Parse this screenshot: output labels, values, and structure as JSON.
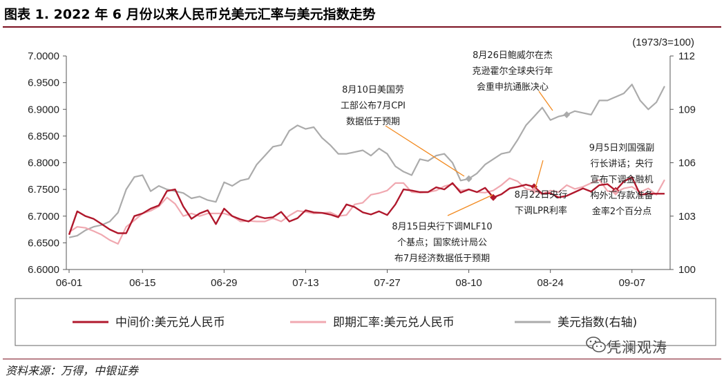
{
  "title": "图表 1. 2022 年 6 月份以来人民币兑美元汇率与美元指数走势",
  "source": "资料来源：万得，中银证券",
  "watermark": "凭澜观涛",
  "colors": {
    "central": "#b0182c",
    "spot": "#f0a8b0",
    "dxy": "#ababab",
    "rule": "#7a1020"
  },
  "chart_data": {
    "type": "line",
    "title": "",
    "right_axis_unit": "(1973/3=100)",
    "x": [
      "06-01",
      "06-02",
      "06-06",
      "06-07",
      "06-08",
      "06-09",
      "06-10",
      "06-13",
      "06-14",
      "06-15",
      "06-16",
      "06-17",
      "06-20",
      "06-21",
      "06-22",
      "06-23",
      "06-24",
      "06-27",
      "06-28",
      "06-29",
      "06-30",
      "07-01",
      "07-04",
      "07-05",
      "07-06",
      "07-07",
      "07-08",
      "07-11",
      "07-12",
      "07-13",
      "07-14",
      "07-15",
      "07-18",
      "07-19",
      "07-20",
      "07-21",
      "07-22",
      "07-25",
      "07-26",
      "07-27",
      "07-28",
      "07-29",
      "08-01",
      "08-02",
      "08-03",
      "08-04",
      "08-05",
      "08-08",
      "08-09",
      "08-10",
      "08-11",
      "08-12",
      "08-15",
      "08-16",
      "08-17",
      "08-18",
      "08-19",
      "08-22",
      "08-23",
      "08-24",
      "08-25",
      "08-26",
      "08-29",
      "08-30",
      "08-31",
      "09-01",
      "09-02",
      "09-05",
      "09-06",
      "09-07",
      "09-08",
      "09-09",
      "09-13",
      "09-14"
    ],
    "x_ticks": [
      "06-01",
      "06-15",
      "06-29",
      "07-13",
      "07-27",
      "08-10",
      "08-24",
      "09-07"
    ],
    "y_left": {
      "min": 6.6,
      "max": 7.0,
      "ticks": [
        "6.6000",
        "6.6500",
        "6.7000",
        "6.7500",
        "6.8000",
        "6.8500",
        "6.9000",
        "6.9500",
        "7.0000"
      ]
    },
    "y_right": {
      "min": 100,
      "max": 112,
      "ticks": [
        "100",
        "103",
        "106",
        "109",
        "112"
      ]
    },
    "series": [
      {
        "name": "中间价:美元兑人民币",
        "axis": "left",
        "values": [
          6.6651,
          6.709,
          6.7,
          6.695,
          6.685,
          6.675,
          6.668,
          6.668,
          6.7,
          6.705,
          6.714,
          6.72,
          6.747,
          6.75,
          6.718,
          6.695,
          6.705,
          6.711,
          6.685,
          6.714,
          6.7,
          6.694,
          6.69,
          6.7,
          6.696,
          6.698,
          6.708,
          6.69,
          6.696,
          6.711,
          6.707,
          6.706,
          6.703,
          6.698,
          6.722,
          6.717,
          6.707,
          6.703,
          6.709,
          6.702,
          6.722,
          6.75,
          6.748,
          6.745,
          6.745,
          6.754,
          6.75,
          6.762,
          6.744,
          6.75,
          6.745,
          6.753,
          6.735,
          6.741,
          6.752,
          6.755,
          6.759,
          6.755,
          6.742,
          6.743,
          6.735,
          6.738,
          6.745,
          6.752,
          6.746,
          6.758,
          6.76,
          6.748,
          6.765,
          6.773,
          6.74,
          6.742,
          6.742,
          6.742
        ]
      },
      {
        "name": "即期汇率:美元兑人民币",
        "axis": "left",
        "values": [
          6.67,
          6.68,
          6.678,
          6.672,
          6.665,
          6.655,
          6.648,
          6.68,
          6.692,
          6.705,
          6.71,
          6.718,
          6.735,
          6.723,
          6.7,
          6.705,
          6.7,
          6.705,
          6.705,
          6.705,
          6.7,
          6.69,
          6.691,
          6.69,
          6.69,
          6.696,
          6.69,
          6.701,
          6.71,
          6.708,
          6.705,
          6.706,
          6.707,
          6.7,
          6.702,
          6.722,
          6.725,
          6.74,
          6.743,
          6.748,
          6.762,
          6.762,
          6.745,
          6.744,
          6.745,
          6.748,
          6.756,
          6.76,
          6.748,
          6.75,
          6.745,
          6.744,
          6.748,
          6.758,
          6.771,
          6.765,
          6.751,
          6.748,
          6.741,
          6.748,
          6.745,
          6.758,
          6.751,
          6.755,
          6.762,
          6.768,
          6.747,
          6.745,
          6.752,
          6.755,
          6.745,
          6.752,
          6.74,
          6.768
        ]
      },
      {
        "name": "美元指数(右轴)",
        "axis": "right",
        "values": [
          101.8,
          101.9,
          102.2,
          102.4,
          102.5,
          102.7,
          103.2,
          104.5,
          105.2,
          105.3,
          104.4,
          104.7,
          104.5,
          104.4,
          104.3,
          104.0,
          104.1,
          103.9,
          103.8,
          104.9,
          104.7,
          105.0,
          105.1,
          105.9,
          106.4,
          106.9,
          107.0,
          107.8,
          108.1,
          107.9,
          108.0,
          107.4,
          107.0,
          106.5,
          106.5,
          106.6,
          106.7,
          106.4,
          106.8,
          106.5,
          105.8,
          105.5,
          105.3,
          106.2,
          106.1,
          106.4,
          106.5,
          106.0,
          105.0,
          105.1,
          105.4,
          105.9,
          106.2,
          106.5,
          106.6,
          107.3,
          108.1,
          108.6,
          109.1,
          108.4,
          108.6,
          108.7,
          108.9,
          108.8,
          108.7,
          109.5,
          109.5,
          109.7,
          109.9,
          110.4,
          109.5,
          109.0,
          109.4,
          110.3
        ]
      }
    ],
    "legend": [
      "中间价:美元兑人民币",
      "即期汇率:美元兑人民币",
      "美元指数(右轴)"
    ],
    "legend_position": "bottom",
    "grid": false,
    "annotations": [
      {
        "lines": [
          "8月10日美国劳",
          "工部公布7月CPI",
          "数据低于预期"
        ]
      },
      {
        "lines": [
          "8月26日鲍威尔在杰",
          "克逊霍尔全球央行年",
          "会重申抗通胀决心"
        ]
      },
      {
        "lines": [
          "9月5日刘国强副",
          "行长讲话；央行",
          "宣布下调金融机",
          "构外汇存款准备",
          "金率2个百分点"
        ]
      },
      {
        "lines": [
          "8月22日央行",
          "下调LPR利率"
        ]
      },
      {
        "lines": [
          "8月15日央行下调MLF10",
          "个基点；国家统计局公",
          "布7月经济数据低于预期"
        ]
      }
    ]
  }
}
